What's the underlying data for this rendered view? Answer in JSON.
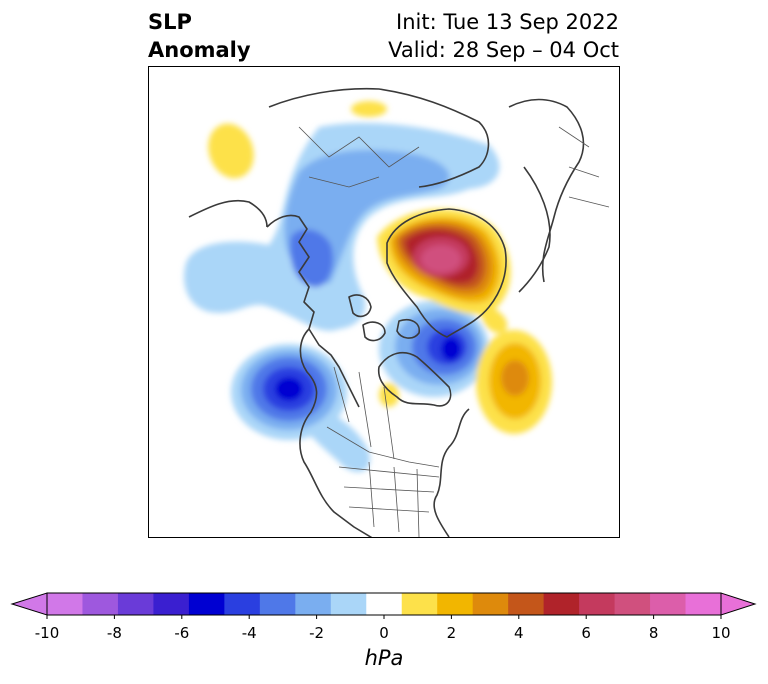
{
  "title": {
    "variable_line1": "SLP",
    "variable_line2": "Anomaly",
    "init": "Init: Tue 13 Sep 2022",
    "valid": "Valid: 28 Sep – 04 Oct"
  },
  "colorbar": {
    "units": "hPa",
    "ticks": [
      "-10",
      "-8",
      "-6",
      "-4",
      "-2",
      "0",
      "2",
      "4",
      "6",
      "8",
      "10"
    ],
    "levels": [
      -10,
      -9,
      -8,
      -7,
      -6,
      -5,
      -4,
      -3,
      -2,
      -1,
      1,
      2,
      3,
      4,
      5,
      6,
      7,
      8,
      9,
      10
    ],
    "colors": [
      "#d178e8",
      "#9e58de",
      "#6a3bd8",
      "#3a1fd0",
      "#0000d2",
      "#2a3fe0",
      "#4f78e8",
      "#7aaef0",
      "#aad6f8",
      "#ffffff",
      "#fde14a",
      "#f2b600",
      "#de8a0c",
      "#c4561a",
      "#b0232a",
      "#c43a5e",
      "#d0507e",
      "#dc5eaa",
      "#e870d8"
    ],
    "extend": "both"
  },
  "map": {
    "projection": "north-polar-stereographic",
    "region": "North America / Arctic / North Pacific",
    "anomaly_features": [
      {
        "name": "Gulf of Alaska low",
        "sign": "negative",
        "peak_hpa": -6
      },
      {
        "name": "Hudson Bay / Baffin low",
        "sign": "negative",
        "peak_hpa": -6
      },
      {
        "name": "Siberian Arctic low",
        "sign": "negative",
        "peak_hpa": -4
      },
      {
        "name": "Greenland high",
        "sign": "positive",
        "peak_hpa": 8
      },
      {
        "name": "North Atlantic high",
        "sign": "positive",
        "peak_hpa": 4
      }
    ]
  }
}
